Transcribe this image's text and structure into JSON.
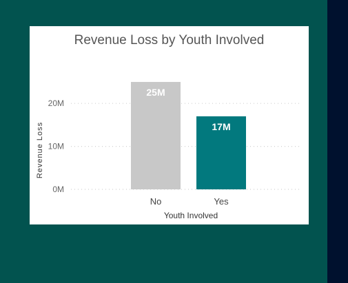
{
  "chart_data": {
    "type": "bar",
    "title": "Revenue Loss by Youth Involved",
    "xlabel": "Youth Involved",
    "ylabel": "Revenue Loss",
    "categories": [
      "No",
      "Yes"
    ],
    "values": [
      25000000,
      17000000
    ],
    "data_labels": [
      "25M",
      "17M"
    ],
    "bar_colors": [
      "#c8c8c8",
      "#02797e"
    ],
    "y_ticks": [
      0,
      10000000,
      20000000
    ],
    "y_tick_labels": [
      "0M",
      "10M",
      "20M"
    ],
    "ylim": [
      0,
      25000000
    ],
    "grid": true,
    "legend": "none"
  },
  "colors": {
    "background": "#02534f",
    "card": "#ffffff",
    "grid": "#d0d0d0"
  }
}
